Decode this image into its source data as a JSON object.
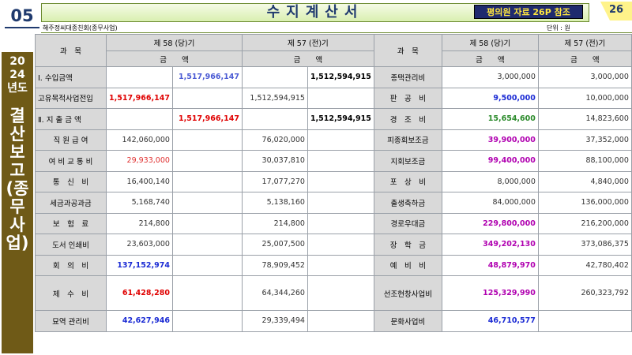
{
  "header": {
    "tab_number": "05",
    "title": "수지계산서",
    "ref_badge": "평의원 자료 26P 참조",
    "page_number": "26",
    "org_name": "해주정씨대종친회(종무사업)",
    "unit": "단위 : 원"
  },
  "side": {
    "year": [
      "20",
      "24",
      "년도"
    ],
    "vertical": [
      "결",
      "산",
      "보",
      "고",
      "(종",
      "무",
      "사",
      "업)"
    ]
  },
  "table": {
    "left_subject": "과　목",
    "right_subject": "과　목",
    "col58": "제 58 (당)기",
    "col57": "제 57 (전)기",
    "amount": "금　　액",
    "rows": [
      {
        "l_label": "Ⅰ. 수입금액",
        "l58a": "",
        "l58b": "1,517,966,147",
        "l57a": "",
        "l57b": "1,512,594,915",
        "r_label": "종택관리비",
        "r58": "3,000,000",
        "r57": "3,000,000"
      },
      {
        "l_label": "고유목적사업전입",
        "l58a": "1,517,966,147",
        "l58b": "",
        "l57a": "1,512,594,915",
        "l57b": "",
        "r_label": "판　공　비",
        "r58": "9,500,000",
        "r57": "10,000,000"
      },
      {
        "l_label": "Ⅱ. 지 출 금 액",
        "l58a": "",
        "l58b": "1,517,966,147",
        "l57a": "",
        "l57b": "1,512,594,915",
        "r_label": "경　조　비",
        "r58": "15,654,600",
        "r57": "14,823,600"
      },
      {
        "l_label": "직 원 급 여",
        "l58a": "142,060,000",
        "l58b": "",
        "l57a": "76,020,000",
        "l57b": "",
        "r_label": "피종회보조금",
        "r58": "39,900,000",
        "r57": "37,352,000"
      },
      {
        "l_label": "여 비 교 통 비",
        "l58a": "29,933,000",
        "l58b": "",
        "l57a": "30,037,810",
        "l57b": "",
        "r_label": "지회보조금",
        "r58": "99,400,000",
        "r57": "88,100,000"
      },
      {
        "l_label": "통　신　비",
        "l58a": "16,400,140",
        "l58b": "",
        "l57a": "17,077,270",
        "l57b": "",
        "r_label": "포　상　비",
        "r58": "8,000,000",
        "r57": "4,840,000"
      },
      {
        "l_label": "세금과공과금",
        "l58a": "5,168,740",
        "l58b": "",
        "l57a": "5,138,160",
        "l57b": "",
        "r_label": "출생축하금",
        "r58": "84,000,000",
        "r57": "136,000,000"
      },
      {
        "l_label": "보　험　료",
        "l58a": "214,800",
        "l58b": "",
        "l57a": "214,800",
        "l57b": "",
        "r_label": "경로우대금",
        "r58": "229,800,000",
        "r57": "216,200,000"
      },
      {
        "l_label": "도서 인쇄비",
        "l58a": "23,603,000",
        "l58b": "",
        "l57a": "25,007,500",
        "l57b": "",
        "r_label": "장　학　금",
        "r58": "349,202,130",
        "r57": "373,086,375"
      },
      {
        "l_label": "회　의　비",
        "l58a": "137,152,974",
        "l58b": "",
        "l57a": "78,909,452",
        "l57b": "",
        "r_label": "예　비　비",
        "r58": "48,879,970",
        "r57": "42,780,402"
      },
      {
        "l_label": "제　수　비",
        "l58a": "61,428,280",
        "l58b": "",
        "l57a": "64,344,260",
        "l57b": "",
        "r_label": "선조현창사업비",
        "r58": "125,329,990",
        "r57": "260,323,792"
      },
      {
        "l_label": "묘역 관리비",
        "l58a": "42,627,946",
        "l58b": "",
        "l57a": "29,339,494",
        "l57b": "",
        "r_label": "문화사업비",
        "r58": "46,710,577",
        "r57": ""
      }
    ]
  }
}
